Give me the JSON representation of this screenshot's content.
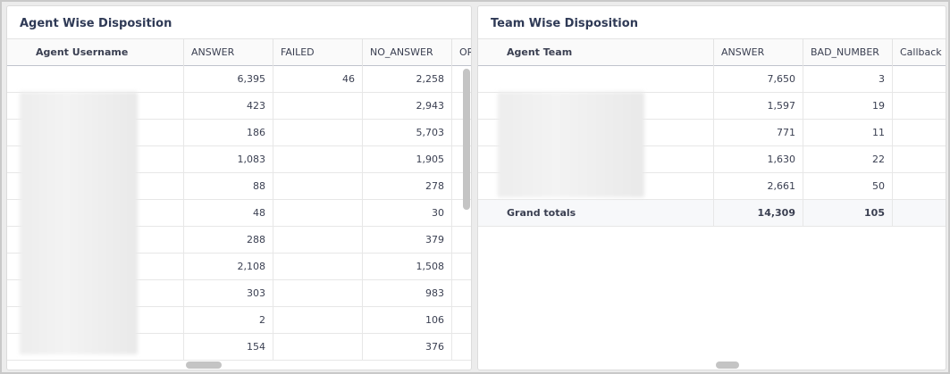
{
  "agent_panel": {
    "title": "Agent Wise Disposition",
    "columns": [
      "Agent Username",
      "ANSWER",
      "FAILED",
      "NO_ANSWER",
      "OR"
    ],
    "rows": [
      {
        "answer": "6,395",
        "failed": "46",
        "no_answer": "2,258"
      },
      {
        "answer": "423",
        "failed": "",
        "no_answer": "2,943"
      },
      {
        "answer": "186",
        "failed": "",
        "no_answer": "5,703"
      },
      {
        "answer": "1,083",
        "failed": "",
        "no_answer": "1,905"
      },
      {
        "answer": "88",
        "failed": "",
        "no_answer": "278"
      },
      {
        "answer": "48",
        "failed": "",
        "no_answer": "30"
      },
      {
        "answer": "288",
        "failed": "",
        "no_answer": "379"
      },
      {
        "answer": "2,108",
        "failed": "",
        "no_answer": "1,508"
      },
      {
        "answer": "303",
        "failed": "",
        "no_answer": "983"
      },
      {
        "answer": "2",
        "failed": "",
        "no_answer": "106"
      },
      {
        "answer": "154",
        "failed": "",
        "no_answer": "376"
      }
    ]
  },
  "team_panel": {
    "title": "Team Wise Disposition",
    "columns": [
      "Agent Team",
      "ANSWER",
      "BAD_NUMBER",
      "Callback L"
    ],
    "rows": [
      {
        "answer": "7,650",
        "bad_number": "3"
      },
      {
        "answer": "1,597",
        "bad_number": "19"
      },
      {
        "answer": "771",
        "bad_number": "11"
      },
      {
        "answer": "1,630",
        "bad_number": "22"
      },
      {
        "answer": "2,661",
        "bad_number": "50"
      }
    ],
    "totals": {
      "label": "Grand totals",
      "answer": "14,309",
      "bad_number": "105"
    }
  }
}
